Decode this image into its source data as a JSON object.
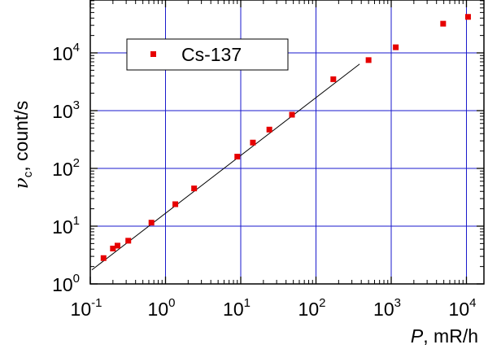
{
  "chart_data": {
    "type": "scatter",
    "x_scale": "log",
    "y_scale": "log",
    "xlim": [
      0.1,
      20000
    ],
    "ylim": [
      1,
      50000
    ],
    "grid": true,
    "grid_color": "#1a1acc",
    "marker_color": "#e60000",
    "fit_line_color": "#000000",
    "legend_position": "top-left",
    "x_ticks": [
      {
        "base": "10",
        "exp": "-1",
        "value": 0.1
      },
      {
        "base": "10",
        "exp": "0",
        "value": 1
      },
      {
        "base": "10",
        "exp": "1",
        "value": 10
      },
      {
        "base": "10",
        "exp": "2",
        "value": 100
      },
      {
        "base": "10",
        "exp": "3",
        "value": 1000
      },
      {
        "base": "10",
        "exp": "4",
        "value": 10000
      }
    ],
    "y_ticks": [
      {
        "base": "10",
        "exp": "0",
        "value": 1
      },
      {
        "base": "10",
        "exp": "1",
        "value": 10
      },
      {
        "base": "10",
        "exp": "2",
        "value": 100
      },
      {
        "base": "10",
        "exp": "3",
        "value": 1000
      },
      {
        "base": "10",
        "exp": "4",
        "value": 10000
      }
    ],
    "xlabel": {
      "symbol": "P",
      "rest": ", mR/h"
    },
    "ylabel": {
      "symbol": "ν",
      "subscript": "c",
      "rest": ", count/s"
    },
    "series": [
      {
        "name": "Cs-137",
        "x": [
          0.15,
          0.2,
          0.23,
          0.32,
          0.65,
          1.35,
          2.4,
          9.0,
          14.5,
          24,
          48,
          170,
          500,
          1150,
          4900,
          10500
        ],
        "y": [
          2.8,
          4.1,
          4.6,
          5.6,
          11.5,
          24,
          45,
          160,
          280,
          470,
          850,
          3500,
          7500,
          12500,
          32000,
          42000
        ]
      }
    ],
    "fit_line": {
      "x": [
        0.105,
        380
      ],
      "y": [
        1.75,
        6400
      ]
    }
  }
}
